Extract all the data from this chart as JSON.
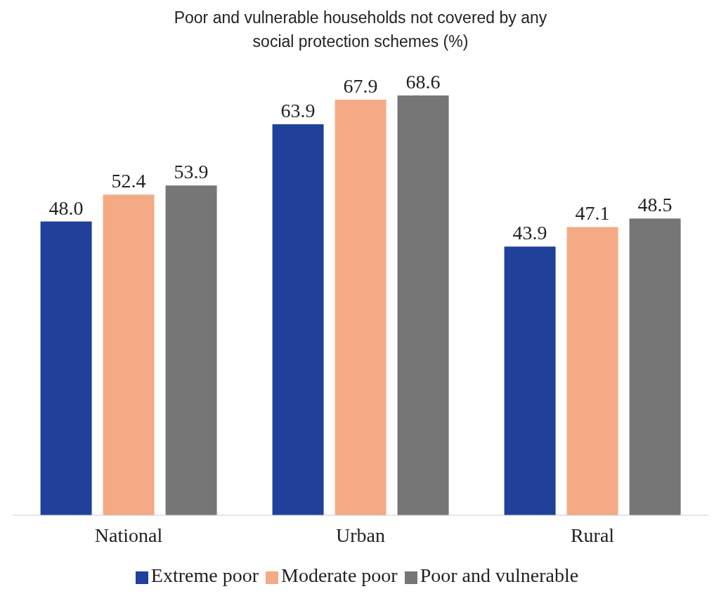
{
  "chart_data": {
    "type": "bar",
    "title": "Poor and vulnerable households not covered by any social protection schemes (%)",
    "categories": [
      "National",
      "Urban",
      "Rural"
    ],
    "series": [
      {
        "name": "Extreme poor",
        "color": "#21409a",
        "values": [
          48.0,
          63.9,
          43.9
        ],
        "value_labels": [
          "48.0",
          "63.9",
          "43.9"
        ]
      },
      {
        "name": "Moderate poor",
        "color": "#f4aa84",
        "values": [
          52.4,
          67.9,
          47.1
        ],
        "value_labels": [
          "52.4",
          "67.9",
          "47.1"
        ]
      },
      {
        "name": "Poor and vulnerable",
        "color": "#767676",
        "values": [
          53.9,
          68.6,
          48.5
        ],
        "value_labels": [
          "53.9",
          "68.6",
          "48.5"
        ]
      }
    ],
    "legend": "bottom"
  }
}
